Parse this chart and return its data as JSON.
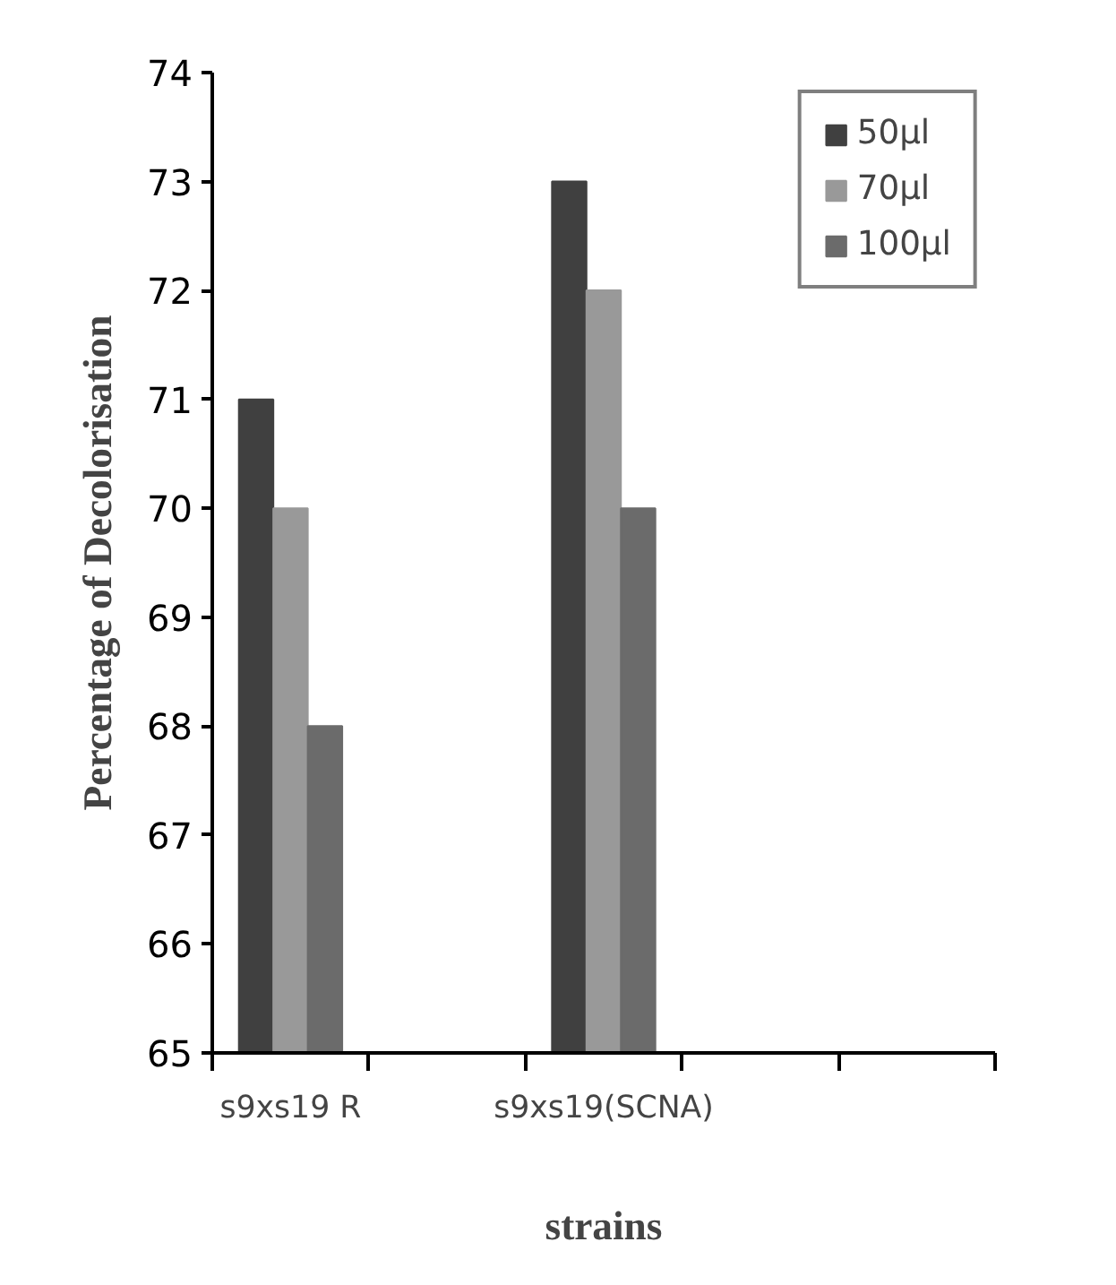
{
  "chart_data": {
    "type": "bar",
    "xlabel": "strains",
    "ylabel": "Percentage of Decolorisation",
    "categories": [
      "s9xs19 R",
      null,
      "s9xs19(SCNA)",
      null,
      null
    ],
    "series": [
      {
        "name": "50µl",
        "color": "#404040",
        "values": [
          71,
          null,
          73,
          null,
          null
        ]
      },
      {
        "name": "70µl",
        "color": "#999999",
        "values": [
          70,
          null,
          72,
          null,
          null
        ]
      },
      {
        "name": "100µl",
        "color": "#6b6b6b",
        "values": [
          68,
          null,
          70,
          null,
          null
        ]
      }
    ],
    "ylim": [
      65,
      74
    ],
    "yticks": [
      65,
      66,
      67,
      68,
      69,
      70,
      71,
      72,
      73,
      74
    ],
    "grid": false,
    "legend": "top right"
  }
}
